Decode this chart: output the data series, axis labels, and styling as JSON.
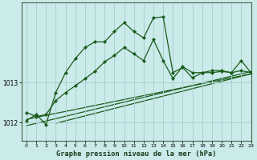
{
  "title": "Graphe pression niveau de la mer (hPa)",
  "background_color": "#cbeaea",
  "grid_color": "#aad0d0",
  "line_color": "#1a5c1a",
  "x_values": [
    0,
    1,
    2,
    3,
    4,
    5,
    6,
    7,
    8,
    9,
    10,
    11,
    12,
    13,
    14,
    15,
    16,
    17,
    18,
    19,
    20,
    21,
    22,
    23
  ],
  "line1_y": [
    1012.25,
    1012.15,
    1012.2,
    1012.55,
    1012.75,
    1012.92,
    1013.1,
    1013.28,
    1013.52,
    1013.68,
    1013.88,
    1013.72,
    1013.55,
    1014.08,
    1013.55,
    1013.1,
    1013.4,
    1013.25,
    1013.25,
    1013.25,
    1013.28,
    1013.25,
    1013.3,
    1013.25
  ],
  "line2_y": [
    1012.05,
    1012.2,
    1011.95,
    1012.75,
    1013.25,
    1013.6,
    1013.88,
    1014.02,
    1014.02,
    1014.28,
    1014.5,
    1014.28,
    1014.12,
    1014.62,
    1014.65,
    1013.25,
    1013.38,
    1013.12,
    1013.25,
    1013.3,
    1013.3,
    1013.25,
    1013.55,
    1013.25
  ],
  "trend1_x": [
    0,
    23
  ],
  "trend1_y": [
    1011.92,
    1013.28
  ],
  "trend2_x": [
    0,
    23
  ],
  "trend2_y": [
    1012.08,
    1013.22
  ],
  "trend3_x": [
    3,
    23
  ],
  "trend3_y": [
    1011.98,
    1013.22
  ],
  "ylim_min": 1011.55,
  "ylim_max": 1015.0,
  "yticks": [
    1012,
    1013
  ],
  "xlim_min": -0.5,
  "xlim_max": 23,
  "xticks": [
    0,
    1,
    2,
    3,
    4,
    5,
    6,
    7,
    8,
    9,
    10,
    11,
    12,
    13,
    14,
    15,
    16,
    17,
    18,
    19,
    20,
    21,
    22,
    23
  ]
}
